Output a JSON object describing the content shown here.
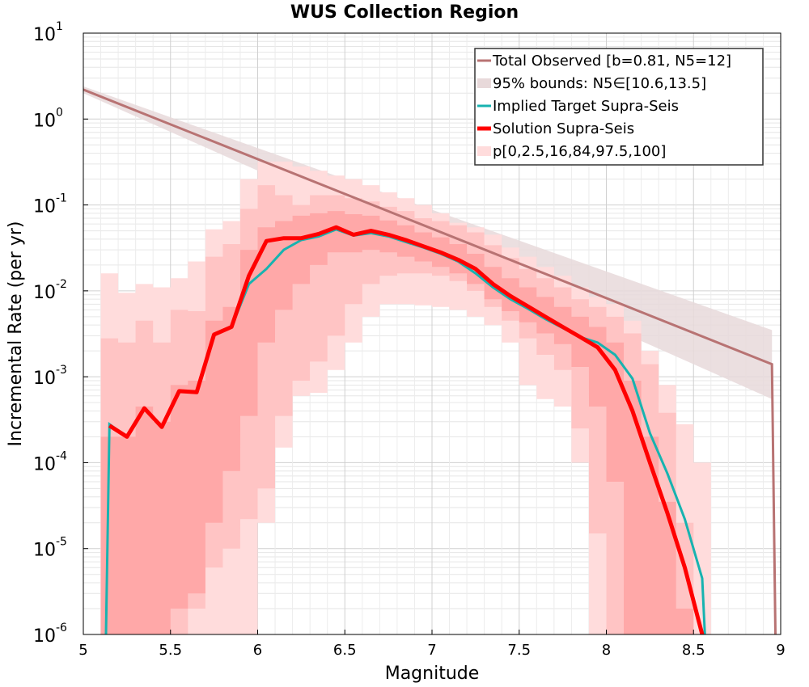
{
  "chart_data": {
    "type": "line",
    "title": "WUS Collection Region",
    "xlabel": "Magnitude",
    "ylabel": "Incremental Rate (per yr)",
    "xlim": [
      5,
      9
    ],
    "ylim": [
      1e-06,
      10
    ],
    "yscale": "log",
    "grid": true,
    "legend_position": "top-right",
    "x_ticks": [
      5,
      5.5,
      6,
      6.5,
      7,
      7.5,
      8,
      8.5,
      9
    ],
    "x_tick_labels": [
      "5",
      "5.5",
      "6",
      "6.5",
      "7",
      "7.5",
      "8",
      "8.5",
      "9"
    ],
    "y_tick_exponents": [
      "1",
      "0",
      "-1",
      "-2",
      "-3",
      "-4",
      "-5",
      "-6"
    ],
    "y_tick_base": "10",
    "colors": {
      "total_observed": "#b87373",
      "bounds_fill": "#e8d9da",
      "implied_target": "#17b3b0",
      "solution": "#ff0000",
      "p_outer": "#ffdcdc",
      "p_mid": "#ffc4c4",
      "p_inner": "#ffa8a8"
    },
    "legend": [
      {
        "label": "Total Observed [b=0.81, N5=12]",
        "style": "line",
        "color": "#b87373"
      },
      {
        "label": "95% bounds: N5∈[10.6,13.5]",
        "style": "fill",
        "color": "#e8d9da"
      },
      {
        "label": "Implied Target Supra-Seis",
        "style": "line",
        "color": "#17b3b0"
      },
      {
        "label": "Solution Supra-Seis",
        "style": "thickline",
        "color": "#ff0000"
      },
      {
        "label": "p[0,2.5,16,84,97.5,100]",
        "style": "fill",
        "color": "#ffdcdc"
      }
    ],
    "total_observed": {
      "x": [
        5.0,
        8.95,
        8.95,
        8.97
      ],
      "y": [
        2.2,
        0.0014,
        0.0014,
        1e-06
      ]
    },
    "bounds_95": {
      "x": [
        5.0,
        8.95
      ],
      "upper": [
        2.4,
        0.0035
      ],
      "lower": [
        2.0,
        0.00055
      ]
    },
    "magnitudes": [
      5.15,
      5.25,
      5.35,
      5.45,
      5.55,
      5.65,
      5.75,
      5.85,
      5.95,
      6.05,
      6.15,
      6.25,
      6.35,
      6.45,
      6.55,
      6.65,
      6.75,
      6.85,
      6.95,
      7.05,
      7.15,
      7.25,
      7.35,
      7.45,
      7.55,
      7.65,
      7.75,
      7.85,
      7.95,
      8.05,
      8.15,
      8.25,
      8.35,
      8.45,
      8.55
    ],
    "solution": [
      0.00027,
      0.0002,
      0.00043,
      0.00026,
      0.00068,
      0.00066,
      0.0031,
      0.0038,
      0.015,
      0.038,
      0.041,
      0.041,
      0.046,
      0.055,
      0.045,
      0.05,
      0.045,
      0.039,
      0.033,
      0.028,
      0.023,
      0.018,
      0.012,
      0.0087,
      0.0066,
      0.005,
      0.0038,
      0.0029,
      0.0022,
      0.0012,
      0.0004,
      0.0001,
      2.6e-05,
      6e-06,
      6e-07
    ],
    "implied_target": [
      0.00028,
      0.0002,
      0.00043,
      0.00026,
      0.00068,
      0.00066,
      0.0031,
      0.0038,
      0.012,
      0.018,
      0.03,
      0.039,
      0.043,
      0.052,
      0.044,
      0.047,
      0.043,
      0.037,
      0.032,
      0.027,
      0.022,
      0.016,
      0.011,
      0.008,
      0.0062,
      0.0047,
      0.0037,
      0.0029,
      0.0025,
      0.0018,
      0.00095,
      0.00022,
      7.5e-05,
      2.2e-05,
      4.5e-06
    ],
    "p_min": [
      1e-06,
      1e-06,
      1e-06,
      1e-06,
      1e-06,
      1e-06,
      1e-06,
      1e-06,
      1e-06,
      2e-05,
      0.00015,
      0.0006,
      0.00065,
      0.0012,
      0.0025,
      0.005,
      0.007,
      0.007,
      0.0068,
      0.0065,
      0.006,
      0.005,
      0.004,
      0.0025,
      0.0008,
      0.00055,
      0.00045,
      0.0001,
      1e-06,
      1e-06,
      1e-06,
      1e-06,
      1e-06,
      1e-06,
      1e-06
    ],
    "p_2_5": [
      1e-06,
      1e-06,
      1e-06,
      1e-06,
      1e-06,
      2e-06,
      6e-06,
      1e-05,
      2.2e-05,
      5e-05,
      0.00035,
      0.0009,
      0.0015,
      0.003,
      0.007,
      0.012,
      0.015,
      0.016,
      0.016,
      0.015,
      0.013,
      0.01,
      0.0065,
      0.0045,
      0.0028,
      0.0018,
      0.0012,
      0.00025,
      1.5e-05,
      1e-06,
      1e-06,
      1e-06,
      1e-06,
      1e-06,
      1e-06
    ],
    "p_16": [
      1e-06,
      1e-06,
      1e-06,
      1e-06,
      2e-06,
      3e-06,
      2e-05,
      8e-05,
      0.00035,
      0.0025,
      0.006,
      0.012,
      0.02,
      0.028,
      0.028,
      0.03,
      0.028,
      0.025,
      0.022,
      0.019,
      0.016,
      0.012,
      0.008,
      0.0058,
      0.0043,
      0.0032,
      0.0024,
      0.0013,
      0.00045,
      6e-05,
      1e-06,
      1e-06,
      1e-06,
      1e-06,
      1e-06
    ],
    "p_84": [
      0.0002,
      0.0002,
      0.00045,
      0.0003,
      0.0008,
      0.0009,
      0.0045,
      0.0065,
      0.03,
      0.055,
      0.065,
      0.075,
      0.08,
      0.085,
      0.078,
      0.075,
      0.066,
      0.058,
      0.048,
      0.042,
      0.035,
      0.027,
      0.019,
      0.014,
      0.011,
      0.0085,
      0.0065,
      0.005,
      0.0038,
      0.0025,
      0.0009,
      0.0002,
      3.5e-05,
      2e-06,
      1e-06
    ],
    "p_97_5": [
      0.0028,
      0.0025,
      0.0045,
      0.0025,
      0.006,
      0.0058,
      0.025,
      0.035,
      0.09,
      0.17,
      0.13,
      0.1,
      0.13,
      0.13,
      0.12,
      0.11,
      0.095,
      0.085,
      0.07,
      0.065,
      0.058,
      0.048,
      0.034,
      0.024,
      0.018,
      0.014,
      0.011,
      0.008,
      0.0065,
      0.005,
      0.0032,
      0.0014,
      0.00038,
      2e-05,
      1e-06
    ],
    "p_max": [
      0.016,
      0.0095,
      0.012,
      0.011,
      0.014,
      0.022,
      0.052,
      0.065,
      0.2,
      0.32,
      0.32,
      0.28,
      0.25,
      0.22,
      0.2,
      0.17,
      0.14,
      0.12,
      0.1,
      0.08,
      0.062,
      0.055,
      0.045,
      0.032,
      0.025,
      0.019,
      0.015,
      0.011,
      0.0085,
      0.007,
      0.0045,
      0.002,
      0.0008,
      0.00028,
      0.0001
    ]
  }
}
